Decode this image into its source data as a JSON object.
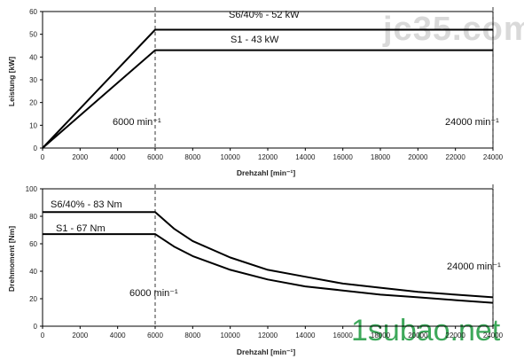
{
  "watermarks": {
    "top": "jc35.com",
    "bottom": "1subao.net",
    "bottom_color": "#3da85a"
  },
  "chart_data": [
    {
      "type": "line",
      "title": "",
      "xlabel": "Drehzahl [min⁻¹]",
      "ylabel": "Leistung [kW]",
      "xlim": [
        0,
        24000
      ],
      "ylim": [
        0,
        60
      ],
      "x_ticks": [
        0,
        2000,
        4000,
        6000,
        8000,
        10000,
        12000,
        14000,
        16000,
        18000,
        20000,
        22000,
        24000
      ],
      "y_ticks": [
        0,
        10,
        20,
        30,
        40,
        50,
        60
      ],
      "grid": false,
      "series": [
        {
          "name": "S6/40% - 52 kW",
          "x": [
            0,
            6000,
            24000
          ],
          "values": [
            0,
            52,
            52
          ]
        },
        {
          "name": "S1 - 43 kW",
          "x": [
            0,
            6000,
            24000
          ],
          "values": [
            0,
            43,
            43
          ]
        }
      ],
      "vlines": [
        6000,
        24000
      ],
      "annotations": [
        "6000 min⁻¹",
        "24000 min⁻¹"
      ]
    },
    {
      "type": "line",
      "title": "",
      "xlabel": "Drehzahl [min⁻¹]",
      "ylabel": "Drehmoment [Nm]",
      "xlim": [
        0,
        24000
      ],
      "ylim": [
        0,
        100
      ],
      "x_ticks": [
        0,
        2000,
        4000,
        6000,
        8000,
        10000,
        12000,
        14000,
        16000,
        18000,
        20000,
        22000,
        24000
      ],
      "y_ticks": [
        0,
        20,
        40,
        60,
        80,
        100
      ],
      "grid": false,
      "series": [
        {
          "name": "S6/40% - 83 Nm",
          "x": [
            0,
            6000,
            7000,
            8000,
            10000,
            12000,
            14000,
            16000,
            18000,
            20000,
            22000,
            24000
          ],
          "values": [
            83,
            83,
            71,
            62,
            50,
            41,
            36,
            31,
            28,
            25,
            23,
            21
          ]
        },
        {
          "name": "S1 - 67 Nm",
          "x": [
            0,
            6000,
            7000,
            8000,
            10000,
            12000,
            14000,
            16000,
            18000,
            20000,
            22000,
            24000
          ],
          "values": [
            67,
            67,
            58,
            51,
            41,
            34,
            29,
            26,
            23,
            21,
            19,
            17
          ]
        }
      ],
      "vlines": [
        6000,
        24000
      ],
      "annotations": [
        "6000 min⁻¹",
        "24000 min⁻¹"
      ]
    }
  ]
}
